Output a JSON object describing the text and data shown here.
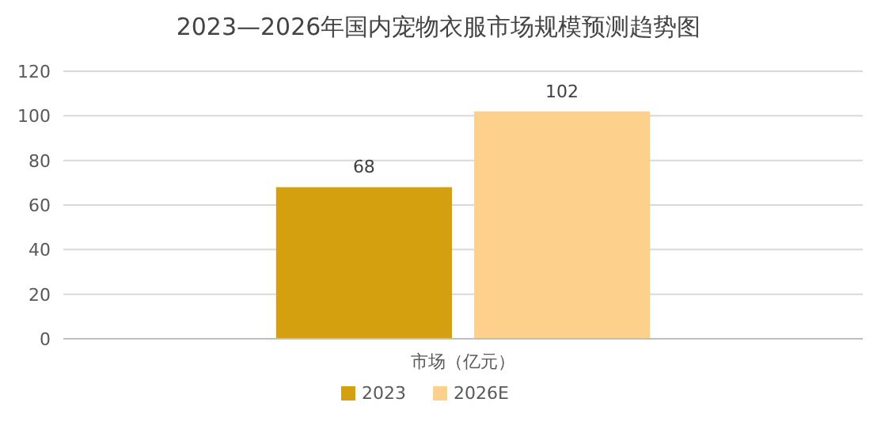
{
  "chart_data": {
    "type": "bar",
    "title": "2023—2026年国内宠物衣服市场规模预测趋势图",
    "categories": [
      "市场（亿元）"
    ],
    "series": [
      {
        "name": "2023",
        "color": "#d4a010",
        "values": [
          68
        ]
      },
      {
        "name": "2026E",
        "color": "#fdd08c",
        "values": [
          102
        ]
      }
    ],
    "ylim": [
      0,
      120
    ],
    "yticks": [
      0,
      20,
      40,
      60,
      80,
      100,
      120
    ],
    "grid": "y",
    "legend": "bottom",
    "data_labels": true
  }
}
